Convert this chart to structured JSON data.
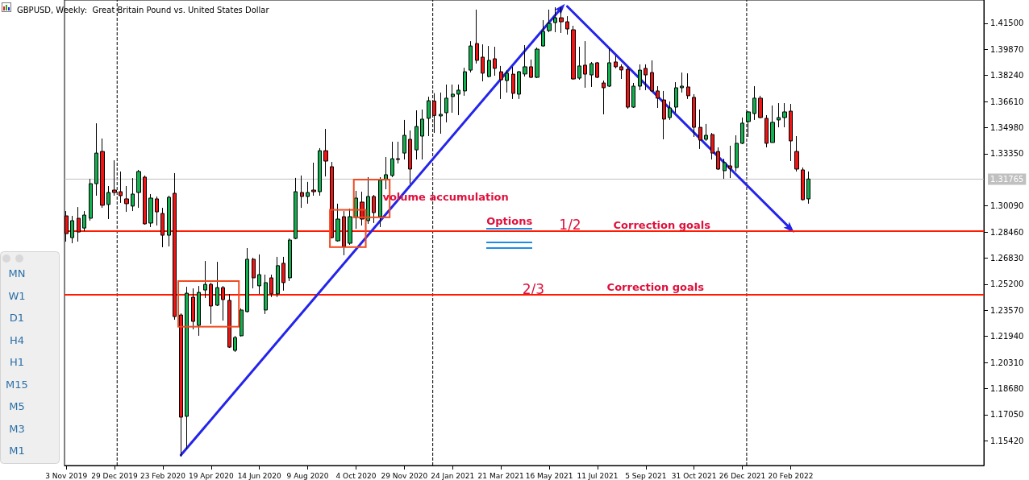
{
  "chart_data": {
    "type": "candlestick",
    "title": "GBPUSD, Weekly:  Great Britain Pound vs. United States Dollar",
    "x": [
      "2019-11-03",
      "2019-11-10",
      "2019-11-17",
      "2019-11-24",
      "2019-12-01",
      "2019-12-08",
      "2019-12-15",
      "2019-12-22",
      "2019-12-29",
      "2020-01-05",
      "2020-01-12",
      "2020-01-19",
      "2020-01-26",
      "2020-02-02",
      "2020-02-09",
      "2020-02-16",
      "2020-02-23",
      "2020-03-01",
      "2020-03-08",
      "2020-03-15",
      "2020-03-22",
      "2020-03-29",
      "2020-04-05",
      "2020-04-12",
      "2020-04-19",
      "2020-04-26",
      "2020-05-03",
      "2020-05-10",
      "2020-05-17",
      "2020-05-24",
      "2020-05-31",
      "2020-06-07",
      "2020-06-14",
      "2020-06-21",
      "2020-06-28",
      "2020-07-05",
      "2020-07-12",
      "2020-07-19",
      "2020-07-26",
      "2020-08-02",
      "2020-08-09",
      "2020-08-16",
      "2020-08-23",
      "2020-08-30",
      "2020-09-06",
      "2020-09-13",
      "2020-09-20",
      "2020-09-27",
      "2020-10-04",
      "2020-10-11",
      "2020-10-18",
      "2020-10-25",
      "2020-11-01",
      "2020-11-08",
      "2020-11-15",
      "2020-11-22",
      "2020-11-29",
      "2020-12-06",
      "2020-12-13",
      "2020-12-20",
      "2020-12-27",
      "2021-01-03",
      "2021-01-10",
      "2021-01-17",
      "2021-01-24",
      "2021-01-31",
      "2021-02-07",
      "2021-02-14",
      "2021-02-21",
      "2021-02-28",
      "2021-03-07",
      "2021-03-14",
      "2021-03-21",
      "2021-03-28",
      "2021-04-04",
      "2021-04-11",
      "2021-04-18",
      "2021-04-25",
      "2021-05-02",
      "2021-05-09",
      "2021-05-16",
      "2021-05-23",
      "2021-05-30",
      "2021-06-06",
      "2021-06-13",
      "2021-06-20",
      "2021-06-27",
      "2021-07-04",
      "2021-07-11",
      "2021-07-18",
      "2021-07-25",
      "2021-08-01",
      "2021-08-08",
      "2021-08-15",
      "2021-08-22",
      "2021-08-29",
      "2021-09-05",
      "2021-09-12",
      "2021-09-19",
      "2021-09-26",
      "2021-10-03",
      "2021-10-10",
      "2021-10-17",
      "2021-10-24",
      "2021-10-31",
      "2021-11-07",
      "2021-11-14",
      "2021-11-21",
      "2021-11-28",
      "2021-12-05",
      "2021-12-12",
      "2021-12-19",
      "2021-12-26",
      "2022-01-02",
      "2022-01-09",
      "2022-01-16",
      "2022-01-23",
      "2022-01-30",
      "2022-02-06",
      "2022-02-13",
      "2022-02-20",
      "2022-02-27",
      "2022-03-06",
      "2022-03-13"
    ],
    "series": [
      {
        "ohlc": [
          [
            1.2947,
            1.2977,
            1.2786,
            1.2836
          ],
          [
            1.2811,
            1.2947,
            1.2776,
            1.2917
          ],
          [
            1.2932,
            1.3002,
            1.2786,
            1.2846
          ],
          [
            1.2871,
            1.2977,
            1.2851,
            1.2952
          ],
          [
            1.2932,
            1.3178,
            1.2917,
            1.3148
          ],
          [
            1.3148,
            1.3525,
            1.3073,
            1.3339
          ],
          [
            1.3349,
            1.343,
            1.2997,
            1.3013
          ],
          [
            1.3018,
            1.3133,
            1.2927,
            1.3093
          ],
          [
            1.3108,
            1.3294,
            1.3073,
            1.3093
          ],
          [
            1.3098,
            1.3224,
            1.3028,
            1.3073
          ],
          [
            1.3053,
            1.3133,
            1.2972,
            1.3023
          ],
          [
            1.3008,
            1.3183,
            1.2977,
            1.3083
          ],
          [
            1.3093,
            1.3234,
            1.2997,
            1.3224
          ],
          [
            1.3189,
            1.3199,
            1.2892,
            1.2897
          ],
          [
            1.2902,
            1.3083,
            1.2877,
            1.3058
          ],
          [
            1.3053,
            1.3068,
            1.2887,
            1.2972
          ],
          [
            1.2962,
            1.2997,
            1.2751,
            1.2826
          ],
          [
            1.2826,
            1.3073,
            1.2756,
            1.3063
          ],
          [
            1.3088,
            1.3214,
            1.2298,
            1.2318
          ],
          [
            1.2328,
            1.2338,
            1.1443,
            1.169
          ],
          [
            1.1695,
            1.2504,
            1.1493,
            1.2464
          ],
          [
            1.2439,
            1.2494,
            1.2238,
            1.2288
          ],
          [
            1.2263,
            1.2509,
            1.2198,
            1.2469
          ],
          [
            1.2484,
            1.2665,
            1.2434,
            1.2519
          ],
          [
            1.2519,
            1.2529,
            1.2273,
            1.2384
          ],
          [
            1.2389,
            1.266,
            1.2384,
            1.2499
          ],
          [
            1.2499,
            1.2509,
            1.2293,
            1.2424
          ],
          [
            1.2419,
            1.2459,
            1.2122,
            1.2127
          ],
          [
            1.2107,
            1.2197,
            1.2097,
            1.2187
          ],
          [
            1.2198,
            1.2369,
            1.2193,
            1.2359
          ],
          [
            1.2349,
            1.2746,
            1.2344,
            1.2676
          ],
          [
            1.2676,
            1.2686,
            1.2494,
            1.256
          ],
          [
            1.251,
            1.2706,
            1.2459,
            1.258
          ],
          [
            1.2359,
            1.258,
            1.2334,
            1.253
          ],
          [
            1.256,
            1.258,
            1.244,
            1.246
          ],
          [
            1.246,
            1.2691,
            1.244,
            1.2636
          ],
          [
            1.2651,
            1.2691,
            1.248,
            1.253
          ],
          [
            1.256,
            1.2806,
            1.254,
            1.2796
          ],
          [
            1.2806,
            1.3184,
            1.2801,
            1.3098
          ],
          [
            1.3093,
            1.3199,
            1.2997,
            1.3068
          ],
          [
            1.3068,
            1.3159,
            1.3023,
            1.3093
          ],
          [
            1.3108,
            1.3279,
            1.3073,
            1.3098
          ],
          [
            1.3098,
            1.337,
            1.3073,
            1.3354
          ],
          [
            1.3354,
            1.349,
            1.3193,
            1.3289
          ],
          [
            1.3254,
            1.3284,
            1.2806,
            1.2811
          ],
          [
            1.2791,
            1.3023,
            1.2786,
            1.2927
          ],
          [
            1.2942,
            1.2977,
            1.2701,
            1.2756
          ],
          [
            1.2776,
            1.2992,
            1.2766,
            1.2942
          ],
          [
            1.2937,
            1.3103,
            1.2866,
            1.3058
          ],
          [
            1.3033,
            1.3098,
            1.2887,
            1.2927
          ],
          [
            1.2917,
            1.3189,
            1.2897,
            1.3068
          ],
          [
            1.3068,
            1.3078,
            1.2902,
            1.2967
          ],
          [
            1.2942,
            1.3189,
            1.2877,
            1.3169
          ],
          [
            1.3174,
            1.3314,
            1.3113,
            1.3204
          ],
          [
            1.3199,
            1.341,
            1.3189,
            1.3304
          ],
          [
            1.3304,
            1.341,
            1.3274,
            1.3299
          ],
          [
            1.3339,
            1.3546,
            1.3299,
            1.345
          ],
          [
            1.3425,
            1.348,
            1.3148,
            1.3239
          ],
          [
            1.3359,
            1.3606,
            1.3299,
            1.3505
          ],
          [
            1.3445,
            1.3611,
            1.3299,
            1.3551
          ],
          [
            1.3556,
            1.3691,
            1.3445,
            1.3666
          ],
          [
            1.3664,
            1.3713,
            1.3465,
            1.3574
          ],
          [
            1.3571,
            1.3717,
            1.346,
            1.3581
          ],
          [
            1.3591,
            1.3767,
            1.3531,
            1.3682
          ],
          [
            1.3692,
            1.3767,
            1.3591,
            1.3707
          ],
          [
            1.3707,
            1.3767,
            1.3576,
            1.3732
          ],
          [
            1.3727,
            1.3872,
            1.3697,
            1.3847
          ],
          [
            1.3857,
            1.4038,
            1.3843,
            1.4008
          ],
          [
            1.4023,
            1.4235,
            1.3898,
            1.3918
          ],
          [
            1.3938,
            1.4018,
            1.3787,
            1.3838
          ],
          [
            1.3817,
            1.4008,
            1.3812,
            1.3918
          ],
          [
            1.3928,
            1.4003,
            1.3822,
            1.3868
          ],
          [
            1.3847,
            1.3883,
            1.3677,
            1.3797
          ],
          [
            1.3792,
            1.3857,
            1.3717,
            1.3838
          ],
          [
            1.3832,
            1.3878,
            1.3677,
            1.3712
          ],
          [
            1.3707,
            1.3852,
            1.3677,
            1.3847
          ],
          [
            1.3833,
            1.4013,
            1.3817,
            1.3878
          ],
          [
            1.3878,
            1.3923,
            1.3807,
            1.3812
          ],
          [
            1.3812,
            1.3998,
            1.3807,
            1.3988
          ],
          [
            1.4008,
            1.4169,
            1.4003,
            1.4099
          ],
          [
            1.4104,
            1.4235,
            1.4094,
            1.4149
          ],
          [
            1.4154,
            1.425,
            1.4094,
            1.4184
          ],
          [
            1.4184,
            1.425,
            1.4089,
            1.4159
          ],
          [
            1.4159,
            1.4194,
            1.4079,
            1.4114
          ],
          [
            1.4109,
            1.4134,
            1.3797,
            1.3802
          ],
          [
            1.3807,
            1.4003,
            1.3797,
            1.3883
          ],
          [
            1.3888,
            1.4038,
            1.3747,
            1.3832
          ],
          [
            1.3827,
            1.3908,
            1.3752,
            1.3898
          ],
          [
            1.3903,
            1.3908,
            1.3807,
            1.3812
          ],
          [
            1.3777,
            1.3792,
            1.3581,
            1.3747
          ],
          [
            1.3757,
            1.3993,
            1.3752,
            1.3903
          ],
          [
            1.3908,
            1.3948,
            1.3868,
            1.3878
          ],
          [
            1.3878,
            1.3893,
            1.3802,
            1.3858
          ],
          [
            1.3862,
            1.3878,
            1.3616,
            1.3626
          ],
          [
            1.3626,
            1.3777,
            1.3621,
            1.3757
          ],
          [
            1.3757,
            1.3893,
            1.3732,
            1.3857
          ],
          [
            1.3868,
            1.3893,
            1.3732,
            1.3827
          ],
          [
            1.3842,
            1.3918,
            1.3722,
            1.3727
          ],
          [
            1.3727,
            1.3757,
            1.3621,
            1.3682
          ],
          [
            1.3671,
            1.3727,
            1.3425,
            1.3551
          ],
          [
            1.3561,
            1.3661,
            1.3546,
            1.3621
          ],
          [
            1.3626,
            1.3782,
            1.3591,
            1.3747
          ],
          [
            1.3747,
            1.3842,
            1.3717,
            1.3757
          ],
          [
            1.3752,
            1.3837,
            1.3677,
            1.3697
          ],
          [
            1.3687,
            1.3707,
            1.344,
            1.35
          ],
          [
            1.35,
            1.3611,
            1.3365,
            1.342
          ],
          [
            1.3425,
            1.3521,
            1.3415,
            1.345
          ],
          [
            1.3455,
            1.3465,
            1.3299,
            1.3339
          ],
          [
            1.3349,
            1.3375,
            1.3234,
            1.3239
          ],
          [
            1.3229,
            1.3304,
            1.3178,
            1.3279
          ],
          [
            1.3259,
            1.3385,
            1.3183,
            1.3244
          ],
          [
            1.3249,
            1.345,
            1.3224,
            1.34
          ],
          [
            1.34,
            1.3561,
            1.3395,
            1.3526
          ],
          [
            1.3536,
            1.3601,
            1.344,
            1.3596
          ],
          [
            1.3586,
            1.3757,
            1.3546,
            1.3682
          ],
          [
            1.3682,
            1.3697,
            1.3556,
            1.3561
          ],
          [
            1.3556,
            1.3576,
            1.3375,
            1.34
          ],
          [
            1.3405,
            1.3636,
            1.3405,
            1.3531
          ],
          [
            1.3546,
            1.3651,
            1.35,
            1.3561
          ],
          [
            1.3561,
            1.3651,
            1.35,
            1.3596
          ],
          [
            1.3601,
            1.3646,
            1.3289,
            1.3415
          ],
          [
            1.3349,
            1.3445,
            1.3224,
            1.3239
          ],
          [
            1.3234,
            1.3249,
            1.3043,
            1.3048
          ],
          [
            1.3053,
            1.3224,
            1.3023,
            1.3177
          ]
        ],
        "colors": [
          "#f01414",
          "#12b04e",
          "#f01414",
          "#12b04e",
          "#12b04e",
          "#12b04e",
          "#f01414",
          "#12b04e",
          "#f01414",
          "#f01414",
          "#f01414",
          "#12b04e",
          "#12b04e",
          "#f01414",
          "#12b04e",
          "#f01414",
          "#f01414",
          "#12b04e",
          "#f01414",
          "#f01414",
          "#12b04e",
          "#f01414",
          "#12b04e",
          "#12b04e",
          "#f01414",
          "#12b04e",
          "#f01414",
          "#f01414",
          "#12b04e",
          "#12b04e",
          "#12b04e",
          "#f01414",
          "#12b04e",
          "#12b04e",
          "#f01414",
          "#12b04e",
          "#f01414",
          "#12b04e",
          "#12b04e",
          "#f01414",
          "#12b04e",
          "#f01414",
          "#12b04e",
          "#f01414",
          "#f01414",
          "#12b04e",
          "#f01414",
          "#12b04e",
          "#12b04e",
          "#f01414",
          "#12b04e",
          "#f01414",
          "#12b04e",
          "#12b04e",
          "#12b04e",
          "#f01414",
          "#12b04e",
          "#f01414",
          "#12b04e",
          "#12b04e",
          "#12b04e",
          "#f01414",
          "#12b04e",
          "#12b04e",
          "#12b04e",
          "#12b04e",
          "#12b04e",
          "#12b04e",
          "#f01414",
          "#f01414",
          "#12b04e",
          "#f01414",
          "#f01414",
          "#12b04e",
          "#f01414",
          "#12b04e",
          "#12b04e",
          "#f01414",
          "#12b04e",
          "#12b04e",
          "#12b04e",
          "#12b04e",
          "#f01414",
          "#f01414",
          "#f01414",
          "#12b04e",
          "#f01414",
          "#12b04e",
          "#f01414",
          "#f01414",
          "#12b04e",
          "#f01414",
          "#f01414",
          "#f01414",
          "#12b04e",
          "#12b04e",
          "#f01414",
          "#f01414",
          "#f01414",
          "#f01414",
          "#12b04e",
          "#12b04e",
          "#12b04e",
          "#f01414",
          "#f01414",
          "#f01414",
          "#12b04e",
          "#f01414",
          "#f01414",
          "#12b04e",
          "#f01414",
          "#12b04e",
          "#12b04e",
          "#12b04e",
          "#12b04e",
          "#f01414",
          "#f01414",
          "#12b04e",
          "#12b04e",
          "#12b04e",
          "#f01414",
          "#f01414",
          "#f01414",
          "#12b04e"
        ]
      },
      {
        "type": "line",
        "x": [
          "2020-03-15",
          "2021-05-30"
        ],
        "values": [
          1.1453,
          1.4245
        ],
        "color": "#2424ec"
      },
      {
        "type": "line",
        "x": [
          "2021-06-06",
          "2022-02-20"
        ],
        "values": [
          1.4255,
          1.2866
        ],
        "color": "#2424ec"
      }
    ],
    "xlim": [
      "2019-11-01",
      "2022-10-02"
    ],
    "ylim": [
      1.1388,
      1.4295
    ],
    "xticks": [
      {
        "value": "2019-11-03",
        "label": "3 Nov 2019"
      },
      {
        "value": "2019-12-29",
        "label": "29 Dec 2019"
      },
      {
        "value": "2020-02-23",
        "label": "23 Feb 2020"
      },
      {
        "value": "2020-04-19",
        "label": "19 Apr 2020"
      },
      {
        "value": "2020-06-14",
        "label": "14 Jun 2020"
      },
      {
        "value": "2020-08-09",
        "label": "9 Aug 2020"
      },
      {
        "value": "2020-10-04",
        "label": "4 Oct 2020"
      },
      {
        "value": "2020-11-29",
        "label": "29 Nov 2020"
      },
      {
        "value": "2021-01-24",
        "label": "24 Jan 2021"
      },
      {
        "value": "2021-03-21",
        "label": "21 Mar 2021"
      },
      {
        "value": "2021-05-16",
        "label": "16 May 2021"
      },
      {
        "value": "2021-07-11",
        "label": "11 Jul 2021"
      },
      {
        "value": "2021-09-05",
        "label": "5 Sep 2021"
      },
      {
        "value": "2021-10-31",
        "label": "31 Oct 2021"
      },
      {
        "value": "2021-12-26",
        "label": "26 Dec 2021"
      },
      {
        "value": "2022-02-20",
        "label": "20 Feb 2022"
      }
    ],
    "yticks": [
      {
        "value": 1.1542,
        "label": "1.15420"
      },
      {
        "value": 1.1705,
        "label": "1.17050"
      },
      {
        "value": 1.1868,
        "label": "1.18680"
      },
      {
        "value": 1.2031,
        "label": "1.20310"
      },
      {
        "value": 1.2194,
        "label": "1.21940"
      },
      {
        "value": 1.2357,
        "label": "1.23570"
      },
      {
        "value": 1.252,
        "label": "1.25200"
      },
      {
        "value": 1.2683,
        "label": "1.26830"
      },
      {
        "value": 1.2846,
        "label": "1.28460"
      },
      {
        "value": 1.3009,
        "label": "1.30090"
      },
      {
        "value": 1.3335,
        "label": "1.33350"
      },
      {
        "value": 1.3498,
        "label": "1.34980"
      },
      {
        "value": 1.3661,
        "label": "1.36610"
      },
      {
        "value": 1.3824,
        "label": "1.38240"
      },
      {
        "value": 1.3987,
        "label": "1.39870"
      },
      {
        "value": 1.415,
        "label": "1.41500"
      }
    ],
    "ref_lines": [
      {
        "axis": "x",
        "value": "2020-01-01",
        "color": "#000000",
        "line_style": "dashed"
      },
      {
        "axis": "x",
        "value": "2021-01-01",
        "color": "#000000",
        "line_style": "dashed"
      },
      {
        "axis": "x",
        "value": "2021-12-31",
        "color": "#000000",
        "line_style": "dashed"
      },
      {
        "axis": "y",
        "value": 1.31765,
        "label": "1.31765",
        "color": "#c0c0c0",
        "line_style": "solid"
      },
      {
        "axis": "y",
        "value": 1.2852,
        "color": "#ff1a00",
        "line_style": "solid"
      },
      {
        "axis": "y",
        "value": 1.2454,
        "color": "#ff1a00",
        "line_style": "solid"
      }
    ],
    "annotations": [
      "Options",
      "volume accumulation",
      "1/2",
      "Correction goals",
      "2/3",
      "Correction goals",
      "MN",
      "W1",
      "D1",
      "H4",
      "H1",
      "M15",
      "M5",
      "M3",
      "M1"
    ]
  }
}
